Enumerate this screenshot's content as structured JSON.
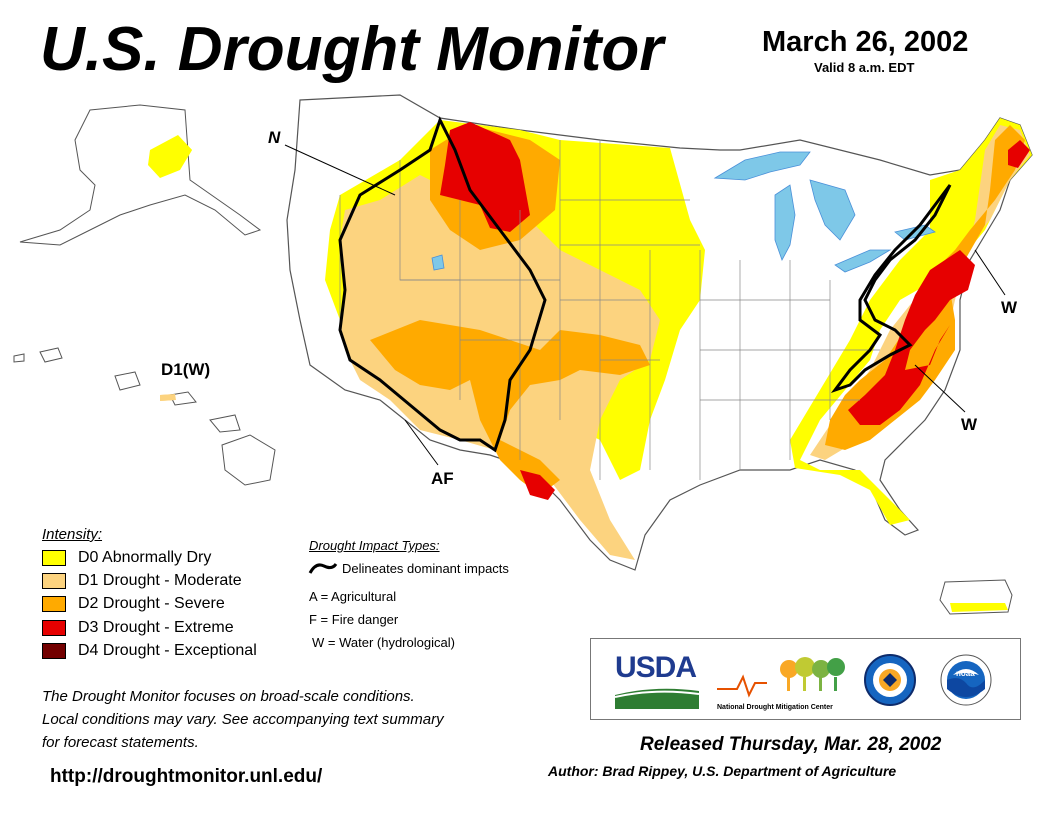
{
  "header": {
    "title": "U.S. Drought Monitor",
    "date": "March 26, 2002",
    "valid": "Valid 8 a.m. EDT"
  },
  "map_labels": {
    "n_label": "N",
    "af_label": "AF",
    "w_label_ne": "W",
    "w_label_se": "W",
    "hawaii_label": "D1(W)"
  },
  "legend": {
    "title": "Intensity:",
    "items": [
      {
        "code": "D0",
        "label": "D0 Abnormally Dry",
        "color": "#ffff00"
      },
      {
        "code": "D1",
        "label": "D1 Drought - Moderate",
        "color": "#fcd37f"
      },
      {
        "code": "D2",
        "label": "D2 Drought - Severe",
        "color": "#ffaa00"
      },
      {
        "code": "D3",
        "label": "D3 Drought - Extreme",
        "color": "#e60000"
      },
      {
        "code": "D4",
        "label": "D4 Drought - Exceptional",
        "color": "#730000"
      }
    ]
  },
  "impacts": {
    "title": "Drought Impact Types:",
    "delineates": "Delineates dominant impacts",
    "types": [
      "A = Agricultural",
      "F = Fire danger",
      "W = Water (hydrological)"
    ]
  },
  "note": {
    "line1": "The Drought Monitor focuses on broad-scale conditions.",
    "line2": "Local conditions may vary. See accompanying text summary",
    "line3": "for forecast statements."
  },
  "footer": {
    "url": "http://droughtmonitor.unl.edu/",
    "released": "Released Thursday, Mar. 28, 2002",
    "author": "Author: Brad Rippey, U.S. Department of Agriculture"
  },
  "logos": {
    "usda": "USDA",
    "ndmc": "National Drought Mitigation Center",
    "noaa": "noaa"
  },
  "colors": {
    "lake": "#7ec8e8",
    "river": "#4a90d9",
    "border": "#888888"
  }
}
